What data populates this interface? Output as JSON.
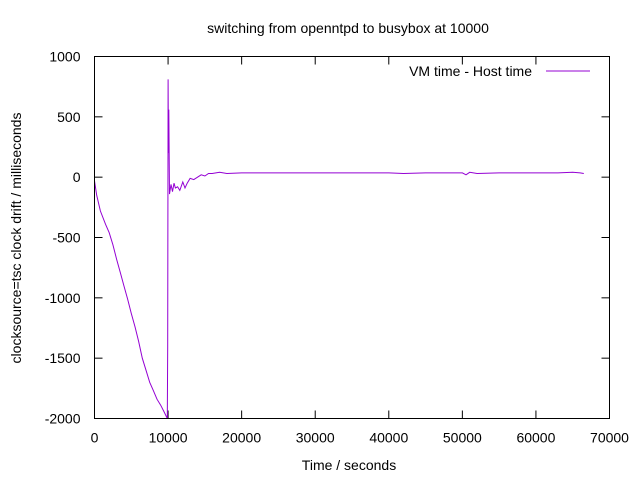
{
  "chart_data": {
    "type": "line",
    "title": "switching from openntpd to busybox at 10000",
    "xlabel": "Time / seconds",
    "ylabel": "clocksource=tsc clock drift / milliseconds",
    "xlim": [
      0,
      70000
    ],
    "ylim": [
      -2000,
      1000
    ],
    "xticks": [
      0,
      10000,
      20000,
      30000,
      40000,
      50000,
      60000,
      70000
    ],
    "yticks": [
      -2000,
      -1500,
      -1000,
      -500,
      0,
      500,
      1000
    ],
    "grid": false,
    "legend_position": "top-right",
    "series": [
      {
        "name": "VM time - Host time",
        "color": "#9400d3",
        "x": [
          0,
          300,
          800,
          1500,
          2000,
          2500,
          3000,
          3500,
          4000,
          4500,
          5000,
          5500,
          6000,
          6500,
          7000,
          7500,
          8000,
          8500,
          9000,
          9500,
          9900,
          9950,
          10000,
          10050,
          10100,
          10150,
          10200,
          10400,
          10600,
          10800,
          11000,
          11300,
          11600,
          12000,
          12300,
          12600,
          13000,
          13500,
          14000,
          14500,
          15000,
          15500,
          16000,
          17000,
          18000,
          20000,
          25000,
          30000,
          35000,
          40000,
          42000,
          45000,
          50000,
          50500,
          51000,
          52000,
          55000,
          60000,
          63000,
          65000,
          66000,
          66500
        ],
        "y": [
          -30,
          -150,
          -280,
          -390,
          -460,
          -560,
          -680,
          -790,
          -900,
          -1010,
          -1130,
          -1240,
          -1360,
          -1500,
          -1600,
          -1700,
          -1770,
          -1840,
          -1890,
          -1950,
          -2000,
          -1400,
          810,
          200,
          560,
          150,
          -140,
          -60,
          -120,
          -50,
          -90,
          -80,
          -110,
          -40,
          -90,
          -50,
          -10,
          -20,
          0,
          20,
          10,
          30,
          30,
          40,
          30,
          35,
          35,
          35,
          35,
          35,
          30,
          35,
          35,
          20,
          40,
          30,
          35,
          35,
          35,
          40,
          35,
          30
        ]
      }
    ]
  }
}
